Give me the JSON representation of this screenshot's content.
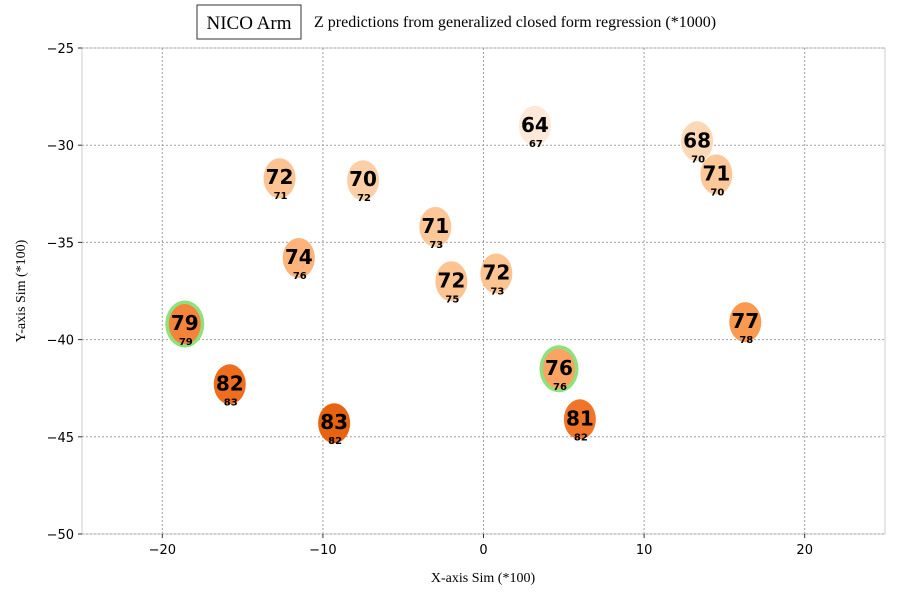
{
  "legend": {
    "label": "NICO Arm"
  },
  "chart_data": {
    "type": "scatter",
    "title": "Z predictions from generalized closed form regression (*1000)",
    "xlabel": "X-axis Sim (*100)",
    "ylabel": "Y-axis Sim (*100)",
    "xlim": [
      -25,
      25
    ],
    "ylim": [
      -50,
      -25
    ],
    "xticks": [
      -20,
      -10,
      0,
      10,
      20
    ],
    "yticks": [
      -25,
      -30,
      -35,
      -40,
      -45,
      -50
    ],
    "xtick_labels": [
      "−20",
      "−10",
      "0",
      "10",
      "20"
    ],
    "ytick_labels": [
      "−25",
      "−30",
      "−35",
      "−40",
      "−45",
      "−50"
    ],
    "grid": true,
    "points": [
      {
        "x": 3.2,
        "y": -29.0,
        "pred": 64,
        "actual": 67,
        "pred_label": "64",
        "actual_label": "67",
        "color": "#fde9d8",
        "highlight": false
      },
      {
        "x": 13.3,
        "y": -29.8,
        "pred": 68,
        "actual": 70,
        "pred_label": "68",
        "actual_label": "70",
        "color": "#fdd8b6",
        "highlight": false
      },
      {
        "x": 14.5,
        "y": -31.5,
        "pred": 71,
        "actual": 70,
        "pred_label": "71",
        "actual_label": "70",
        "color": "#fdc797",
        "highlight": false
      },
      {
        "x": -12.7,
        "y": -31.7,
        "pred": 72,
        "actual": 71,
        "pred_label": "72",
        "actual_label": "71",
        "color": "#fdc391",
        "highlight": false
      },
      {
        "x": -7.5,
        "y": -31.8,
        "pred": 70,
        "actual": 72,
        "pred_label": "70",
        "actual_label": "72",
        "color": "#fdcfa6",
        "highlight": false
      },
      {
        "x": -3.0,
        "y": -34.2,
        "pred": 71,
        "actual": 73,
        "pred_label": "71",
        "actual_label": "73",
        "color": "#fdc797",
        "highlight": false
      },
      {
        "x": -11.5,
        "y": -35.8,
        "pred": 74,
        "actual": 76,
        "pred_label": "74",
        "actual_label": "76",
        "color": "#fdb379",
        "highlight": false
      },
      {
        "x": -2.0,
        "y": -37.0,
        "pred": 72,
        "actual": 75,
        "pred_label": "72",
        "actual_label": "75",
        "color": "#fdc391",
        "highlight": false
      },
      {
        "x": 0.8,
        "y": -36.6,
        "pred": 72,
        "actual": 73,
        "pred_label": "72",
        "actual_label": "73",
        "color": "#fdc391",
        "highlight": false
      },
      {
        "x": -18.6,
        "y": -39.2,
        "pred": 79,
        "actual": 79,
        "pred_label": "79",
        "actual_label": "79",
        "color": "#f5843a",
        "highlight": true
      },
      {
        "x": 16.3,
        "y": -39.1,
        "pred": 77,
        "actual": 78,
        "pred_label": "77",
        "actual_label": "78",
        "color": "#f99a50",
        "highlight": false
      },
      {
        "x": 4.7,
        "y": -41.5,
        "pred": 76,
        "actual": 76,
        "pred_label": "76",
        "actual_label": "76",
        "color": "#fba362",
        "highlight": true
      },
      {
        "x": -15.8,
        "y": -42.3,
        "pred": 82,
        "actual": 83,
        "pred_label": "82",
        "actual_label": "83",
        "color": "#ee6d1e",
        "highlight": false
      },
      {
        "x": -9.3,
        "y": -44.3,
        "pred": 83,
        "actual": 82,
        "pred_label": "83",
        "actual_label": "82",
        "color": "#e8630f",
        "highlight": false
      },
      {
        "x": 6.0,
        "y": -44.1,
        "pred": 81,
        "actual": 82,
        "pred_label": "81",
        "actual_label": "82",
        "color": "#f07528",
        "highlight": false
      }
    ]
  },
  "colors": {
    "highlight_ring": "#8ee27e",
    "grid": "#a0a0a0",
    "frame": "#cccccc"
  }
}
